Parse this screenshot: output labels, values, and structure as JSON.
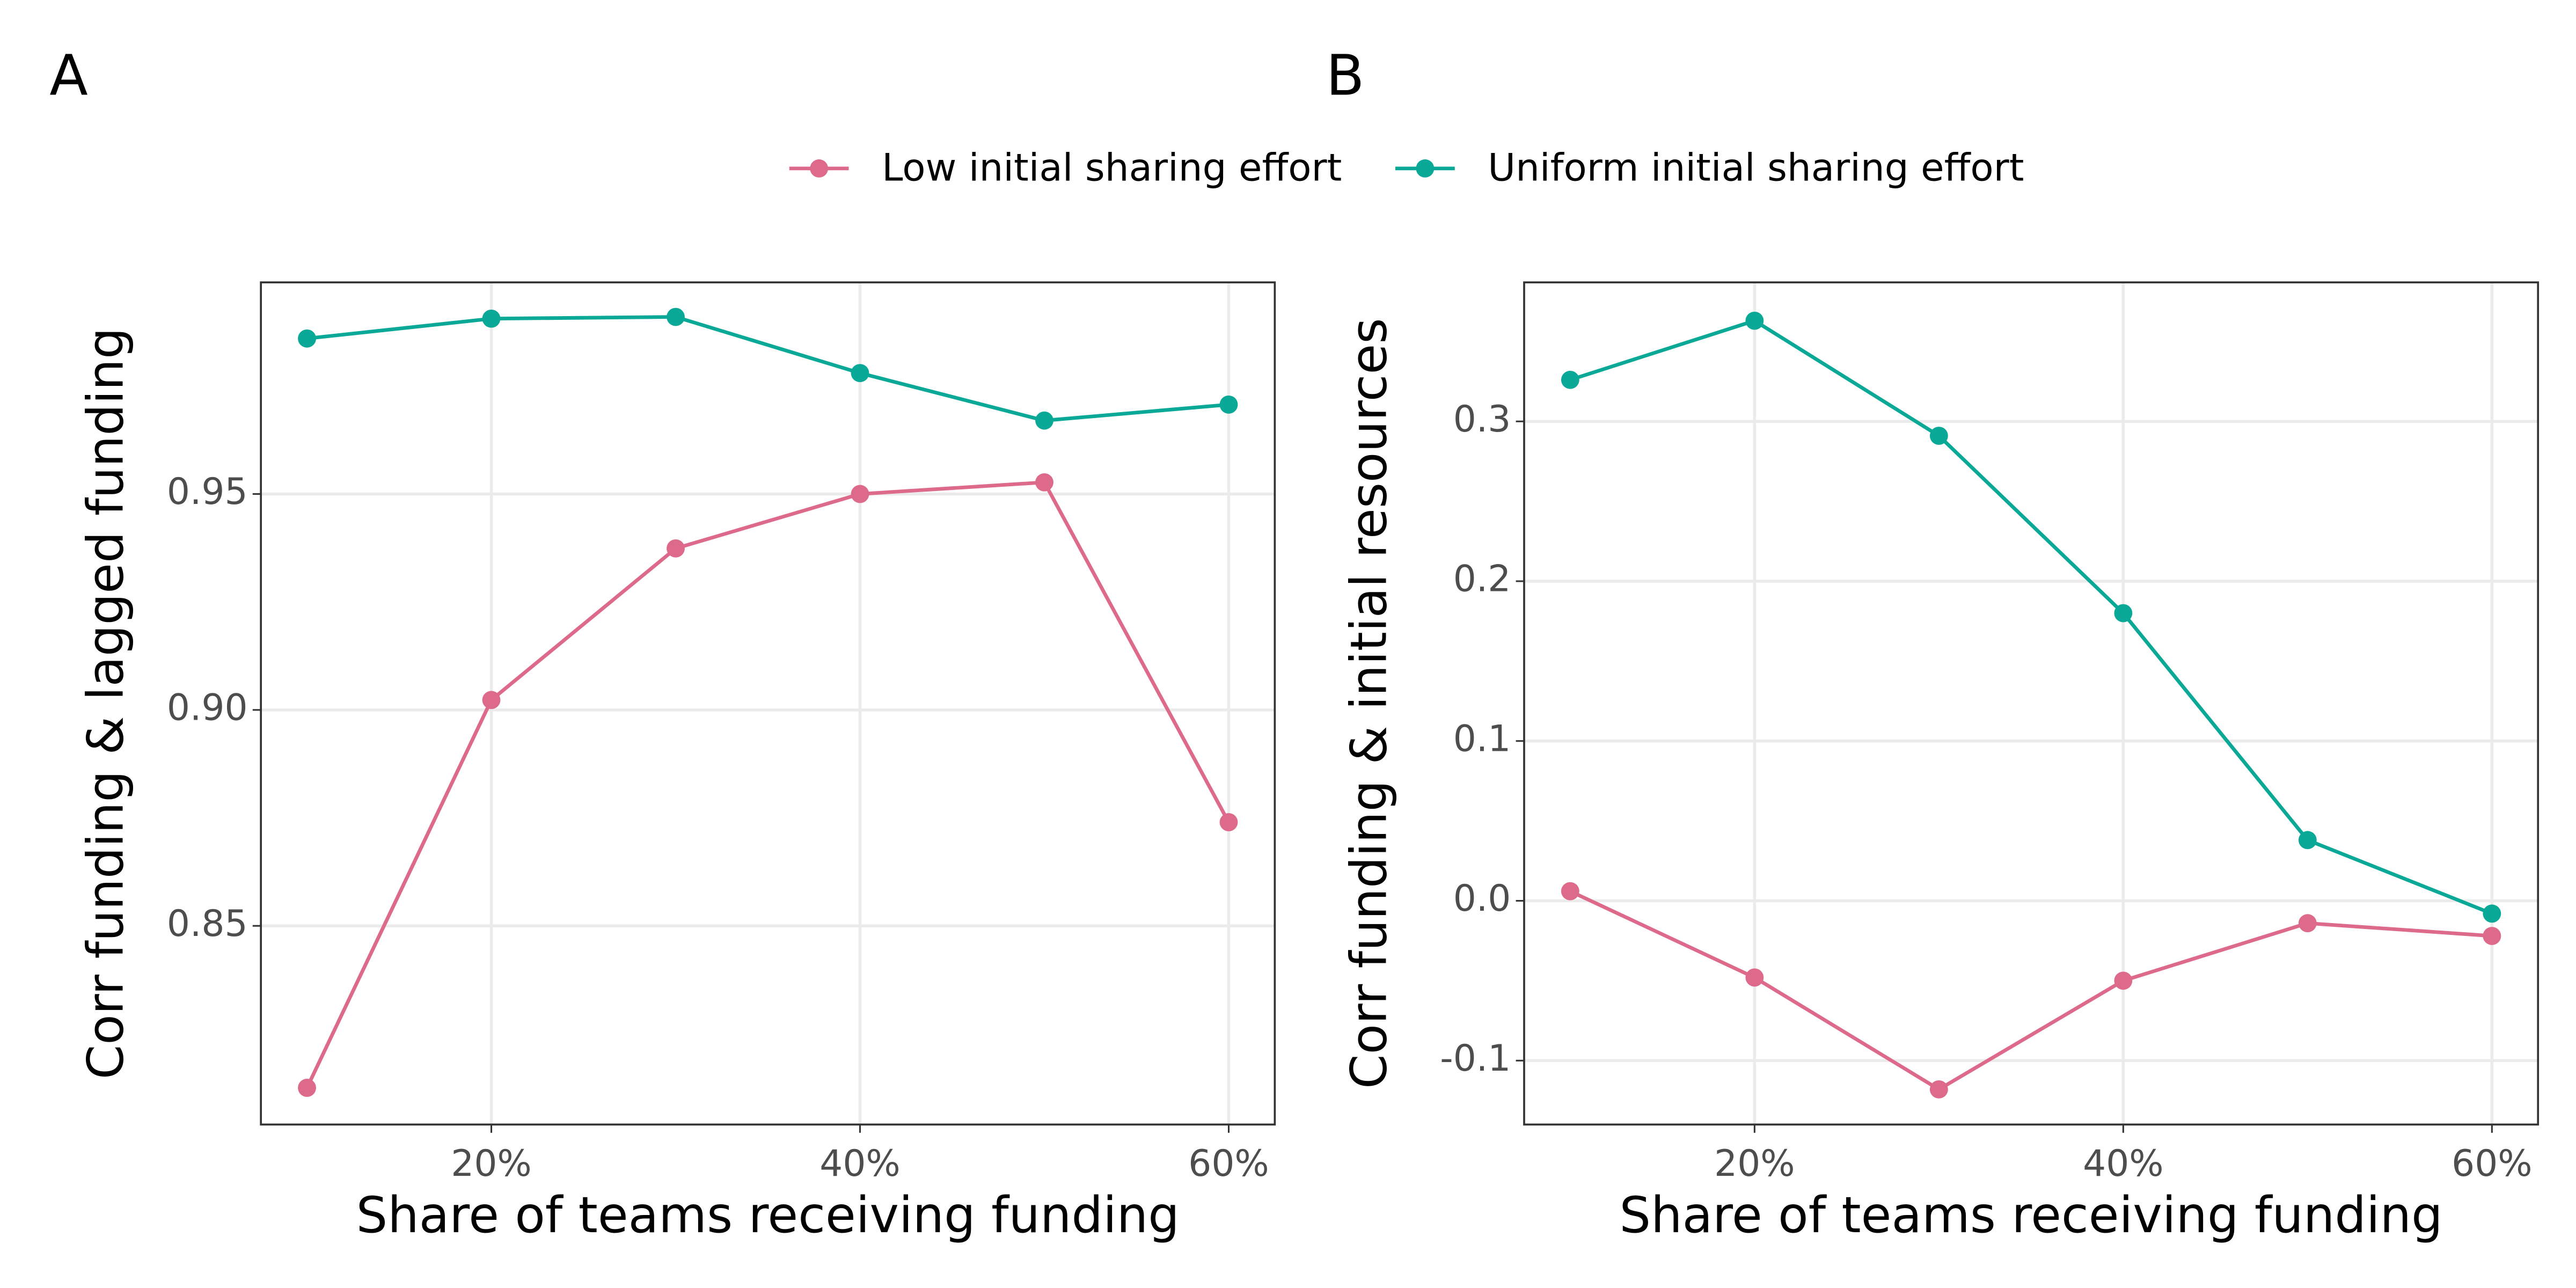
{
  "legend": {
    "position": "top"
  },
  "chart_data": [
    {
      "type": "line",
      "panel": "A",
      "x_label": "Share of teams receiving funding",
      "y_label": "Corr funding & lagged funding",
      "x": [
        10,
        20,
        30,
        40,
        50,
        60
      ],
      "xlim": [
        7.5,
        62.5
      ],
      "xticks": [
        {
          "value": 20,
          "label": "20%"
        },
        {
          "value": 40,
          "label": "40%"
        },
        {
          "value": 60,
          "label": "60%"
        }
      ],
      "ylim": [
        0.804,
        0.999
      ],
      "yticks": [
        0.85,
        {
          "value": 0.9,
          "label": "0.90"
        },
        0.95
      ],
      "grid": true,
      "series": [
        {
          "name": "Low initial sharing effort",
          "color": "#de6a8b",
          "values": [
            0.8125,
            0.9023,
            0.9374,
            0.95,
            0.9527,
            0.874
          ]
        },
        {
          "name": "Uniform initial sharing effort",
          "color": "#0aa896",
          "values": [
            0.986,
            0.9906,
            0.991,
            0.978,
            0.967,
            0.9707
          ]
        }
      ]
    },
    {
      "type": "line",
      "panel": "B",
      "x_label": "Share of teams receiving funding",
      "y_label": "Corr funding & initial resources",
      "x": [
        10,
        20,
        30,
        40,
        50,
        60
      ],
      "xlim": [
        7.5,
        62.5
      ],
      "xticks": [
        {
          "value": 20,
          "label": "20%"
        },
        {
          "value": 40,
          "label": "40%"
        },
        {
          "value": 60,
          "label": "60%"
        }
      ],
      "ylim": [
        -0.14,
        0.387
      ],
      "yticks": [
        -0.1,
        {
          "value": 0,
          "label": "0.0"
        },
        0.1,
        0.2,
        0.3
      ],
      "grid": true,
      "series": [
        {
          "name": "Low initial sharing effort",
          "color": "#de6a8b",
          "values": [
            0.006,
            -0.048,
            -0.118,
            -0.05,
            -0.014,
            -0.022
          ]
        },
        {
          "name": "Uniform initial sharing effort",
          "color": "#0aa896",
          "values": [
            0.326,
            0.363,
            0.291,
            0.18,
            0.038,
            -0.008
          ]
        }
      ]
    }
  ]
}
